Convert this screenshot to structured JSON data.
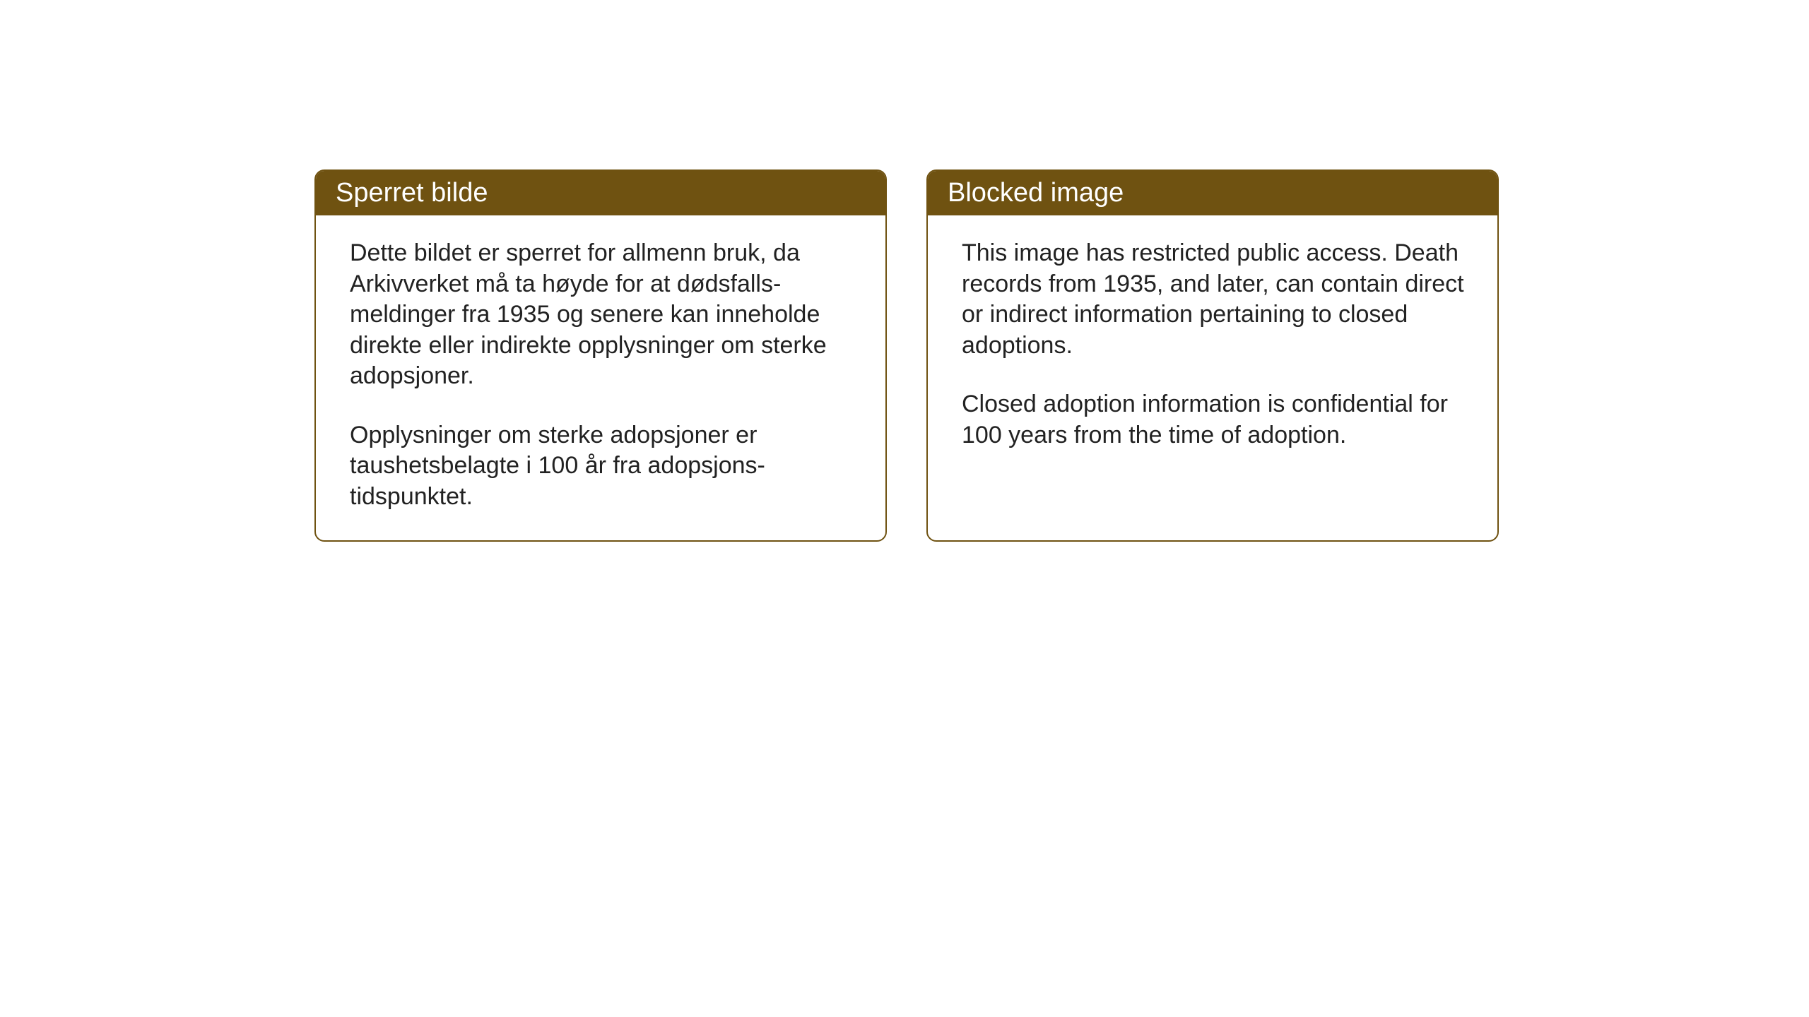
{
  "layout": {
    "background_color": "#ffffff",
    "box_border_color": "#6f5211",
    "header_background": "#6f5211",
    "header_text_color": "#ffffff",
    "body_text_color": "#222222",
    "header_fontsize": 38,
    "body_fontsize": 34,
    "border_radius": 14,
    "box_gap": 56
  },
  "boxes": {
    "norwegian": {
      "title": "Sperret bilde",
      "paragraph1": "Dette bildet er sperret for allmenn bruk, da Arkivverket må ta høyde for at dødsfalls-meldinger fra 1935 og senere kan inneholde direkte eller indirekte opplysninger om sterke adopsjoner.",
      "paragraph2": "Opplysninger om sterke adopsjoner er taushetsbelagte i 100 år fra adopsjons-tidspunktet."
    },
    "english": {
      "title": "Blocked image",
      "paragraph1": "This image has restricted public access. Death records from 1935, and later, can contain direct or indirect information pertaining to closed adoptions.",
      "paragraph2": "Closed adoption information is confidential for 100 years from the time of adoption."
    }
  }
}
